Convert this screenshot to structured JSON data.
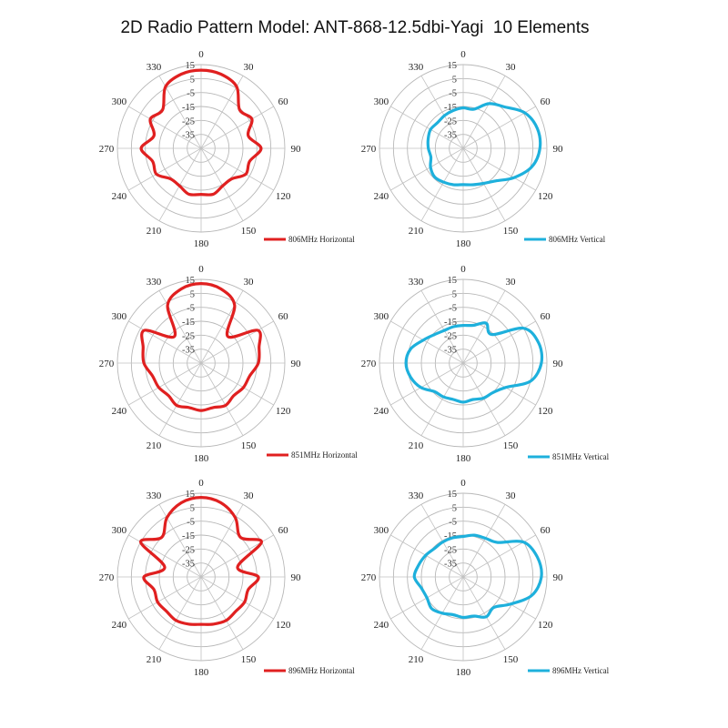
{
  "title": "2D Radio Pattern Model: ANT-868-12.5dbi-Yagi  10 Elements",
  "colors": {
    "horizontal": "#e02020",
    "vertical": "#1eb0dc",
    "grid": "#b8b8b8"
  },
  "chart_data": [
    {
      "type": "polar",
      "legend": "806MHz Horizontal",
      "color": "#e02020",
      "r_ticks": [
        15,
        5,
        -5,
        -15,
        -25,
        -35
      ],
      "angle_ticks": [
        "0",
        "30",
        "60",
        "90",
        "120",
        "150",
        "180",
        "210",
        "240",
        "270",
        "300",
        "330"
      ],
      "r_range": [
        -45,
        15
      ],
      "angles": [
        0,
        15,
        30,
        45,
        60,
        75,
        90,
        105,
        120,
        135,
        150,
        165,
        180,
        195,
        210,
        225,
        240,
        255,
        270,
        285,
        300,
        315,
        330,
        345
      ],
      "gain_db": [
        11,
        10,
        6,
        -6,
        -3,
        -10,
        -2,
        -9,
        -8,
        -14,
        -14,
        -11,
        -12,
        -11,
        -14,
        -14,
        -8,
        -9,
        -2,
        -10,
        -3,
        -6,
        6,
        10
      ]
    },
    {
      "type": "polar",
      "legend": "806MHz Vertical",
      "color": "#1eb0dc",
      "r_ticks": [
        15,
        5,
        -5,
        -15,
        -25,
        -35
      ],
      "angle_ticks": [
        "0",
        "30",
        "60",
        "90",
        "120",
        "150",
        "180",
        "210",
        "240",
        "270",
        "300",
        "330"
      ],
      "r_range": [
        -45,
        15
      ],
      "angles": [
        0,
        15,
        30,
        45,
        60,
        75,
        90,
        105,
        120,
        135,
        150,
        165,
        180,
        195,
        210,
        225,
        240,
        255,
        270,
        285,
        300,
        315,
        330,
        345
      ],
      "gain_db": [
        -16,
        -16,
        -8,
        -3,
        6,
        10,
        10,
        6,
        -3,
        -12,
        -16,
        -18,
        -19,
        -18,
        -17,
        -16,
        -18,
        -21,
        -20,
        -19,
        -18,
        -19,
        -18,
        -17
      ]
    },
    {
      "type": "polar",
      "legend": "851MHz Horizontal",
      "color": "#e02020",
      "r_ticks": [
        15,
        5,
        -5,
        -15,
        -25,
        -35
      ],
      "angle_ticks": [
        "0",
        "30",
        "60",
        "90",
        "120",
        "150",
        "180",
        "210",
        "240",
        "270",
        "300",
        "330"
      ],
      "r_range": [
        -45,
        15
      ],
      "angles": [
        0,
        15,
        30,
        45,
        60,
        75,
        90,
        105,
        120,
        135,
        150,
        165,
        180,
        195,
        210,
        225,
        240,
        255,
        270,
        285,
        300,
        315,
        330,
        345
      ],
      "gain_db": [
        12,
        10,
        3,
        -18,
        2,
        -2,
        -4,
        -9,
        -10,
        -12,
        -10,
        -12,
        -11,
        -12,
        -10,
        -12,
        -10,
        -9,
        -4,
        -2,
        2,
        -18,
        3,
        10
      ]
    },
    {
      "type": "polar",
      "legend": "851MHz Vertical",
      "color": "#1eb0dc",
      "r_ticks": [
        15,
        5,
        -5,
        -15,
        -25,
        -35
      ],
      "angle_ticks": [
        "0",
        "30",
        "60",
        "90",
        "120",
        "150",
        "180",
        "210",
        "240",
        "270",
        "300",
        "330"
      ],
      "r_range": [
        -45,
        15
      ],
      "angles": [
        0,
        15,
        30,
        45,
        60,
        75,
        90,
        105,
        120,
        135,
        150,
        165,
        180,
        195,
        210,
        225,
        240,
        255,
        270,
        285,
        300,
        315,
        330,
        345
      ],
      "gain_db": [
        -18,
        -17,
        -12,
        -16,
        5,
        11,
        11,
        5,
        -10,
        -15,
        -16,
        -18,
        -17,
        -18,
        -17,
        -16,
        -10,
        -6,
        -4,
        -6,
        -12,
        -16,
        -18,
        -18
      ]
    },
    {
      "type": "polar",
      "legend": "896MHz Horizontal",
      "color": "#e02020",
      "r_ticks": [
        15,
        5,
        -5,
        -15,
        -25,
        -35
      ],
      "angle_ticks": [
        "0",
        "30",
        "60",
        "90",
        "120",
        "150",
        "180",
        "210",
        "240",
        "270",
        "300",
        "330"
      ],
      "r_range": [
        -45,
        15
      ],
      "angles": [
        0,
        15,
        30,
        45,
        60,
        75,
        90,
        105,
        120,
        135,
        150,
        165,
        180,
        195,
        210,
        225,
        240,
        255,
        270,
        285,
        300,
        315,
        330,
        345
      ],
      "gain_db": [
        12,
        10,
        4,
        -5,
        5,
        -18,
        -4,
        -10,
        -9,
        -10,
        -9,
        -10,
        -11,
        -10,
        -9,
        -10,
        -9,
        -10,
        -4,
        -18,
        5,
        -5,
        4,
        10
      ]
    },
    {
      "type": "polar",
      "legend": "896MHz Vertical",
      "color": "#1eb0dc",
      "r_ticks": [
        15,
        5,
        -5,
        -15,
        -25,
        -35
      ],
      "angle_ticks": [
        "0",
        "30",
        "60",
        "90",
        "120",
        "150",
        "180",
        "210",
        "240",
        "270",
        "300",
        "330"
      ],
      "r_range": [
        -45,
        15
      ],
      "angles": [
        0,
        15,
        30,
        45,
        60,
        75,
        90,
        105,
        120,
        135,
        150,
        165,
        180,
        195,
        210,
        225,
        240,
        255,
        270,
        285,
        300,
        315,
        330,
        345
      ],
      "gain_db": [
        -16,
        -14,
        -13,
        -10,
        5,
        10,
        11,
        6,
        -6,
        -14,
        -12,
        -16,
        -16,
        -17,
        -15,
        -13,
        -15,
        -14,
        -10,
        -12,
        -14,
        -16,
        -16,
        -16
      ]
    }
  ]
}
